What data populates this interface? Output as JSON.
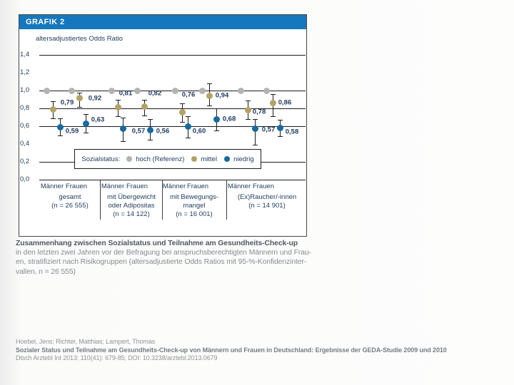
{
  "figure_header": "GRAFIK 2",
  "chart_data": {
    "type": "scatter",
    "ylabel": "altersadjustiertes Odds Ratio",
    "ylim": [
      0.0,
      1.4
    ],
    "yticks": [
      {
        "value": 1.4,
        "label": "1,4"
      },
      {
        "value": 1.2,
        "label": "1,2"
      },
      {
        "value": 1.0,
        "label": "1,0"
      },
      {
        "value": 0.8,
        "label": "0,8"
      },
      {
        "value": 0.6,
        "label": "0,6"
      },
      {
        "value": 0.4,
        "label": "0,4"
      },
      {
        "value": 0.2,
        "label": "0,2"
      },
      {
        "value": 0.0,
        "label": "0,0"
      }
    ],
    "gridlines": [
      1.4,
      1.0,
      0.8,
      0.6,
      0.2,
      0.0
    ],
    "legend": {
      "title": "Sozialstatus:",
      "position": "inside-bottom",
      "entries": [
        {
          "name": "hoch (Referenz)",
          "color": "#b3b3b3"
        },
        {
          "name": "mittel",
          "color": "#b2a266"
        },
        {
          "name": "niedrig",
          "color": "#17699f"
        }
      ]
    },
    "groups": [
      {
        "label_lines": [
          "gesamt",
          "(n = 26 555)"
        ],
        "columns": [
          {
            "sex": "Männer",
            "hoch": 1.0,
            "mittel": {
              "value": 0.79,
              "label": "0,79",
              "ci": [
                0.69,
                0.88
              ]
            },
            "niedrig": {
              "value": 0.59,
              "label": "0,59",
              "ci": [
                0.5,
                0.69
              ]
            }
          },
          {
            "sex": "Frauen",
            "hoch": 1.0,
            "mittel": {
              "value": 0.92,
              "label": "0,92",
              "ci": [
                0.82,
                0.98
              ]
            },
            "niedrig": {
              "value": 0.63,
              "label": "0,63",
              "ci": [
                0.53,
                0.74
              ]
            }
          }
        ]
      },
      {
        "label_lines": [
          "mit Übergewicht",
          "oder Adipositas",
          "(n = 14 122)"
        ],
        "columns": [
          {
            "sex": "Männer",
            "hoch": 1.0,
            "mittel": {
              "value": 0.81,
              "label": "0,81",
              "ci": [
                0.71,
                0.9
              ]
            },
            "niedrig": {
              "value": 0.57,
              "label": "0,57",
              "ci": [
                0.43,
                0.7
              ]
            }
          },
          {
            "sex": "Frauen",
            "hoch": 1.0,
            "mittel": {
              "value": 0.82,
              "label": "0,82",
              "ci": [
                0.72,
                0.9
              ]
            },
            "niedrig": {
              "value": 0.56,
              "label": "0,56",
              "ci": [
                0.45,
                0.68
              ]
            }
          }
        ]
      },
      {
        "label_lines": [
          "mit Bewegungs-",
          "mangel",
          "(n = 16 001)"
        ],
        "columns": [
          {
            "sex": "Männer",
            "hoch": 1.0,
            "mittel": {
              "value": 0.76,
              "label": "0,76",
              "ci": [
                0.65,
                0.86
              ]
            },
            "niedrig": {
              "value": 0.6,
              "label": "0,60",
              "ci": [
                0.47,
                0.71
              ]
            }
          },
          {
            "sex": "Frauen",
            "hoch": 1.0,
            "mittel": {
              "value": 0.94,
              "label": "0,94",
              "ci": [
                0.83,
                1.08
              ]
            },
            "niedrig": {
              "value": 0.68,
              "label": "0,68",
              "ci": [
                0.55,
                0.8
              ]
            }
          }
        ]
      },
      {
        "label_lines": [
          "(Ex)Raucher/-innen",
          "(n = 14 901)"
        ],
        "columns": [
          {
            "sex": "Männer",
            "hoch": 1.0,
            "mittel": {
              "value": 0.78,
              "label": "0,78",
              "ci": [
                0.68,
                0.89
              ]
            },
            "niedrig": {
              "value": 0.57,
              "label": "0,57",
              "ci": [
                0.39,
                0.68
              ]
            }
          },
          {
            "sex": "Frauen",
            "hoch": 1.0,
            "mittel": {
              "value": 0.86,
              "label": "0,86",
              "ci": [
                0.71,
                0.96
              ]
            },
            "niedrig": {
              "value": 0.58,
              "label": "0,58",
              "ci": [
                0.49,
                0.67
              ]
            }
          }
        ]
      }
    ]
  },
  "caption": {
    "title": "Zusammenhang zwischen Sozialstatus und Teilnahme am Gesundheits-Check-up",
    "body_lines": [
      "in den letzten zwei Jahren vor der Befragung bei anspruchsberechtigten Männern und Frau-",
      "en, stratifiziert nach Risikogruppen (altersadjustierte Odds Ratios mit 95-%-Konfidenzinter-",
      "vallen, n = 26 555)"
    ]
  },
  "citation": {
    "authors": "Hoebel, Jens; Richter, Matthias; Lampert, Thomas",
    "title": "Sozialer Status und Teilnahme am Gesundheits-Check-up von Männern und Frauen in Deutschland: Ergebnisse der GEDA-Studie 2009 und 2010",
    "reference": "Dtsch Arztebl Int 2013; 110(41): 679-85; DOI: 10.3238/arztebl.2013.0679"
  },
  "colors": {
    "header_bar": "#1577bd",
    "chart_text": "#24405f",
    "hoch": "#b3b3b3",
    "mittel": "#b2a266",
    "niedrig": "#17699f"
  }
}
